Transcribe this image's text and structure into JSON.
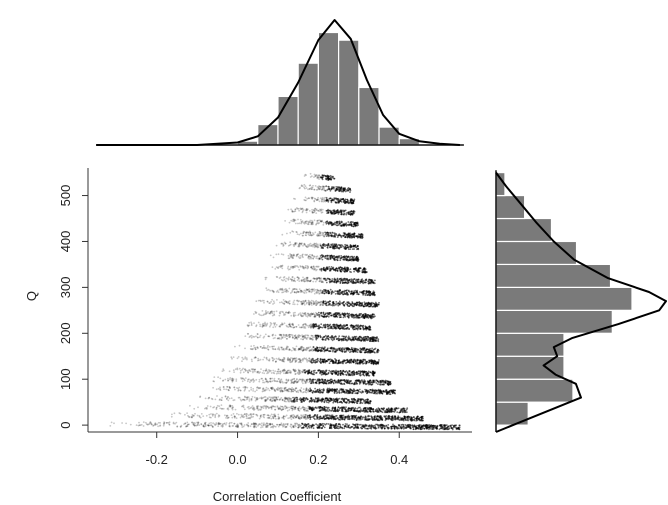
{
  "chart_data": [
    {
      "type": "scatter",
      "xlabel": "Correlation Coefficient",
      "ylabel": "Q",
      "xlim": [
        -0.37,
        0.58
      ],
      "ylim": [
        -15,
        560
      ],
      "xticks": [
        "-0.2",
        "0.0",
        "0.2",
        "0.4"
      ],
      "xtick_values": [
        -0.2,
        0.0,
        0.2,
        0.4
      ],
      "yticks": [
        "0",
        "100",
        "200",
        "300",
        "400",
        "500"
      ],
      "ytick_values": [
        0,
        100,
        200,
        300,
        400,
        500
      ],
      "grid": false,
      "point_color": "#000000",
      "clusters": [
        {
          "q": 545,
          "x_lo": 0.16,
          "x_hi": 0.24
        },
        {
          "q": 520,
          "x_lo": 0.14,
          "x_hi": 0.28
        },
        {
          "q": 495,
          "x_lo": 0.13,
          "x_hi": 0.29
        },
        {
          "q": 470,
          "x_lo": 0.12,
          "x_hi": 0.29
        },
        {
          "q": 445,
          "x_lo": 0.11,
          "x_hi": 0.3
        },
        {
          "q": 420,
          "x_lo": 0.1,
          "x_hi": 0.31
        },
        {
          "q": 395,
          "x_lo": 0.09,
          "x_hi": 0.3
        },
        {
          "q": 370,
          "x_lo": 0.08,
          "x_hi": 0.3
        },
        {
          "q": 345,
          "x_lo": 0.07,
          "x_hi": 0.32
        },
        {
          "q": 320,
          "x_lo": 0.06,
          "x_hi": 0.34
        },
        {
          "q": 295,
          "x_lo": 0.05,
          "x_hi": 0.34
        },
        {
          "q": 270,
          "x_lo": 0.04,
          "x_hi": 0.35
        },
        {
          "q": 245,
          "x_lo": 0.02,
          "x_hi": 0.34
        },
        {
          "q": 220,
          "x_lo": 0.01,
          "x_hi": 0.33
        },
        {
          "q": 195,
          "x_lo": 0.0,
          "x_hi": 0.35
        },
        {
          "q": 170,
          "x_lo": -0.01,
          "x_hi": 0.35
        },
        {
          "q": 145,
          "x_lo": -0.03,
          "x_hi": 0.35
        },
        {
          "q": 120,
          "x_lo": -0.05,
          "x_hi": 0.34
        },
        {
          "q": 100,
          "x_lo": -0.07,
          "x_hi": 0.38
        },
        {
          "q": 80,
          "x_lo": -0.08,
          "x_hi": 0.39
        },
        {
          "q": 60,
          "x_lo": -0.1,
          "x_hi": 0.33
        },
        {
          "q": 40,
          "x_lo": -0.12,
          "x_hi": 0.42
        },
        {
          "q": 22,
          "x_lo": -0.18,
          "x_hi": 0.46
        },
        {
          "q": 3,
          "x_lo": -0.32,
          "x_hi": 0.55
        }
      ]
    },
    {
      "type": "bar",
      "orientation": "vertical",
      "position": "top",
      "bin_edges": [
        0.0,
        0.05,
        0.1,
        0.15,
        0.2,
        0.25,
        0.3,
        0.35,
        0.4,
        0.45
      ],
      "values": [
        0.03,
        0.16,
        0.38,
        0.64,
        0.88,
        0.82,
        0.45,
        0.14,
        0.05
      ],
      "density_curve": {
        "x": [
          -0.35,
          -0.2,
          -0.1,
          0.0,
          0.05,
          0.1,
          0.15,
          0.2,
          0.24,
          0.28,
          0.32,
          0.36,
          0.4,
          0.45,
          0.5,
          0.55
        ],
        "y": [
          0.0,
          0.0,
          0.0,
          0.02,
          0.07,
          0.22,
          0.5,
          0.84,
          1.0,
          0.85,
          0.52,
          0.24,
          0.09,
          0.03,
          0.01,
          0.0
        ]
      },
      "bar_color": "#7a7a7a"
    },
    {
      "type": "bar",
      "orientation": "horizontal",
      "position": "right",
      "bin_edges": [
        0,
        50,
        100,
        150,
        200,
        250,
        300,
        350,
        400,
        450,
        500,
        550
      ],
      "values": [
        0.18,
        0.43,
        0.38,
        0.38,
        0.65,
        0.76,
        0.64,
        0.45,
        0.31,
        0.16,
        0.05
      ],
      "density_curve": {
        "q": [
          -15,
          0,
          30,
          60,
          90,
          110,
          130,
          150,
          170,
          190,
          220,
          250,
          270,
          290,
          320,
          360,
          400,
          440,
          480,
          520,
          550
        ],
        "x": [
          0.0,
          0.1,
          0.3,
          0.5,
          0.47,
          0.35,
          0.28,
          0.36,
          0.34,
          0.45,
          0.72,
          0.96,
          1.0,
          0.9,
          0.66,
          0.46,
          0.34,
          0.24,
          0.15,
          0.06,
          0.0
        ]
      },
      "bar_color": "#7a7a7a"
    }
  ]
}
